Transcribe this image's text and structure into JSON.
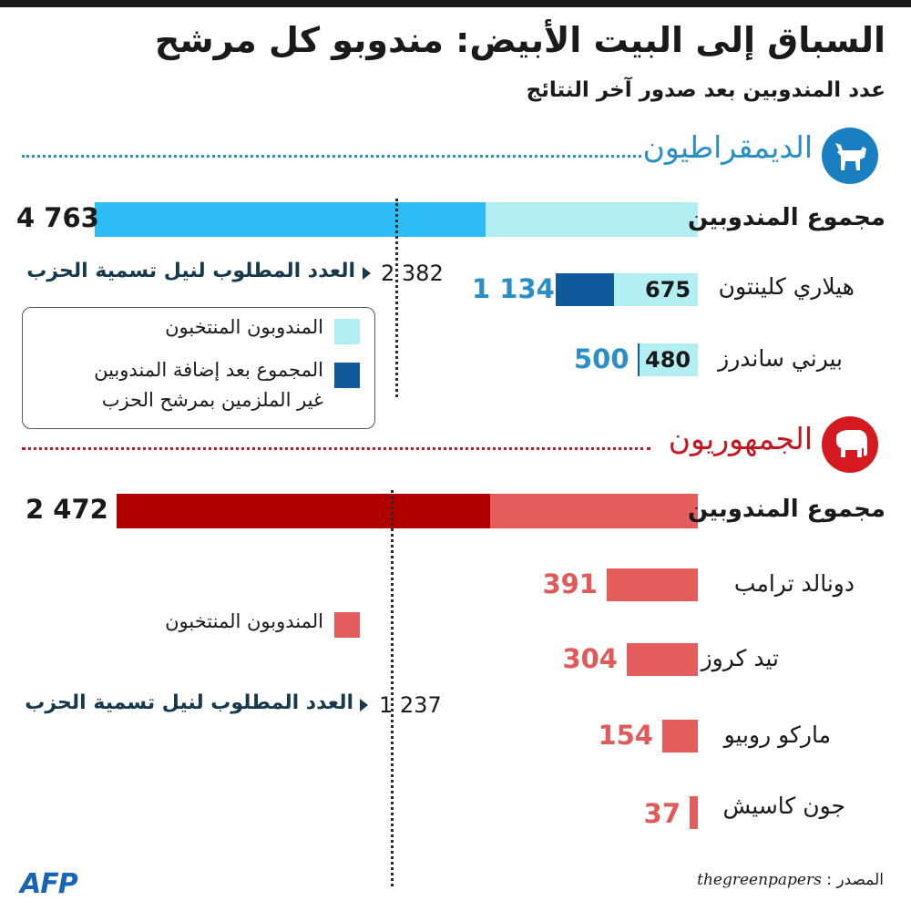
{
  "header": {
    "title": "السباق إلى البيت الأبيض: مندوبو كل مرشح",
    "subtitle": "عدد المندوبين بعد صدور آخر النتائج"
  },
  "colors": {
    "dem_light": "#b2eef2",
    "dem_mid": "#2dbcf4",
    "dem_dark": "#10599a",
    "dem_text": "#2a8fc6",
    "rep_light": "#e55c5c",
    "rep_dark": "#b00000",
    "rep_text": "#e15a5a"
  },
  "chart_data": [
    {
      "type": "bar",
      "party": "الديمقراطيون",
      "total_label": "مجموع المندوبين",
      "total": 4763,
      "total_display": "4 763",
      "threshold": 2382,
      "threshold_display": "2 382",
      "threshold_label": "العدد المطلوب لنيل تسمية الحزب",
      "legend": {
        "pledged_label": "المندوبون المنتخبون",
        "with_super_label_line1": "المجموع بعد إضافة المندوبين",
        "with_super_label_line2": "غير الملزمين بمرشح الحزب"
      },
      "series": [
        {
          "name": "المندوبون المنتخبون",
          "values": [
            675,
            480
          ]
        },
        {
          "name": "المجموع بعد إضافة المندوبين غير الملزمين بمرشح الحزب",
          "values": [
            1134,
            500
          ]
        }
      ],
      "candidates": [
        {
          "name": "هيلاري كلينتون",
          "pledged": 675,
          "pledged_display": "675",
          "with_super": 1134,
          "with_super_display": "1 134"
        },
        {
          "name": "بيرني ساندرز",
          "pledged": 480,
          "pledged_display": "480",
          "with_super": 500,
          "with_super_display": "500"
        }
      ]
    },
    {
      "type": "bar",
      "party": "الجمهوريون",
      "total_label": "مجموع المندوبين",
      "total": 2472,
      "total_display": "2 472",
      "threshold": 1237,
      "threshold_display": "1 237",
      "threshold_label": "العدد المطلوب لنيل تسمية الحزب",
      "legend": {
        "pledged_label": "المندوبون المنتخبون"
      },
      "series": [
        {
          "name": "المندوبون المنتخبون",
          "values": [
            391,
            304,
            154,
            37
          ]
        }
      ],
      "candidates": [
        {
          "name": "دونالد ترامب",
          "pledged": 391,
          "pledged_display": "391"
        },
        {
          "name": "تيد كروز",
          "pledged": 304,
          "pledged_display": "304"
        },
        {
          "name": "ماركو روبيو",
          "pledged": 154,
          "pledged_display": "154"
        },
        {
          "name": "جون كاسيش",
          "pledged": 37,
          "pledged_display": "37"
        }
      ]
    }
  ],
  "footer": {
    "logo": "AFP",
    "source_label": "المصدر :",
    "source_name": "thegreenpapers"
  }
}
